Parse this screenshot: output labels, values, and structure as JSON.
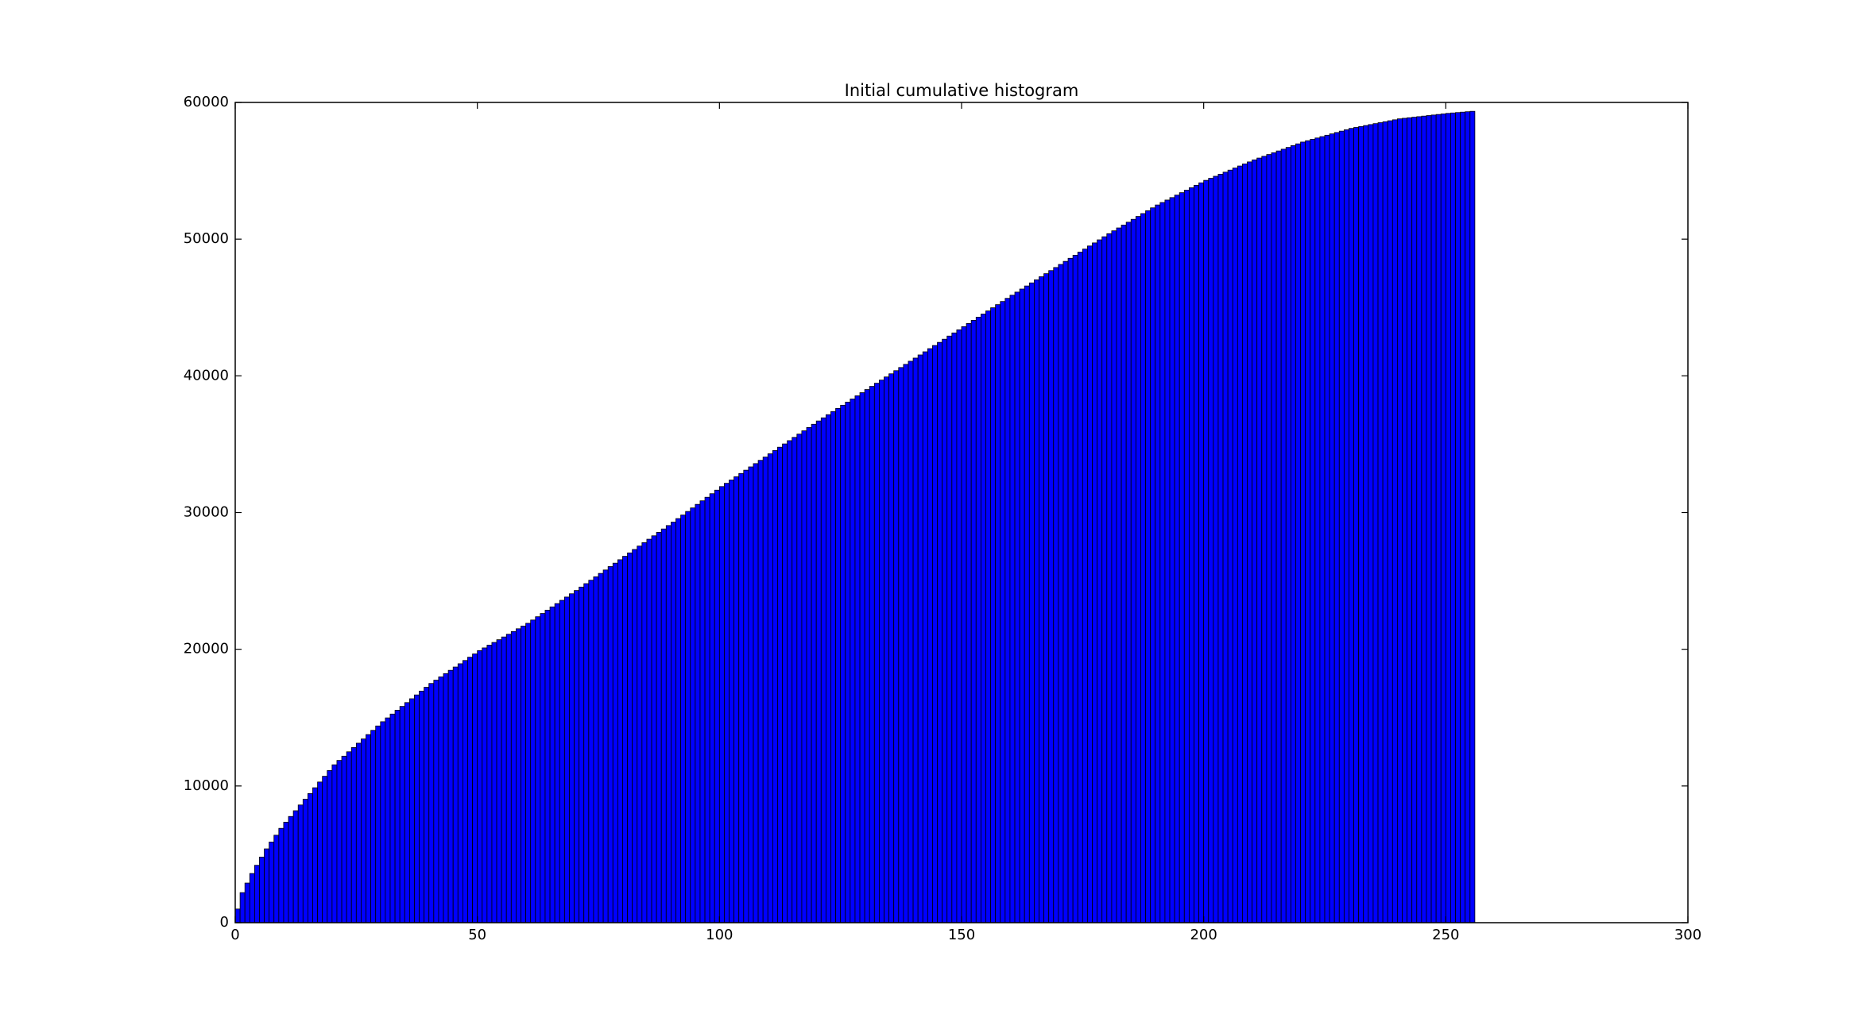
{
  "chart_data": {
    "type": "bar",
    "title": "Initial cumulative histogram",
    "x": [
      0,
      1,
      2,
      3,
      4,
      5,
      6,
      7,
      8,
      9,
      10,
      11,
      12,
      13,
      14,
      15,
      16,
      17,
      18,
      19,
      20,
      21,
      22,
      23,
      24,
      25,
      26,
      27,
      28,
      29,
      30,
      31,
      32,
      33,
      34,
      35,
      36,
      37,
      38,
      39,
      40,
      41,
      42,
      43,
      44,
      45,
      46,
      47,
      48,
      49,
      50,
      51,
      52,
      53,
      54,
      55,
      56,
      57,
      58,
      59,
      60,
      61,
      62,
      63,
      64,
      65,
      66,
      67,
      68,
      69,
      70,
      71,
      72,
      73,
      74,
      75,
      76,
      77,
      78,
      79,
      80,
      81,
      82,
      83,
      84,
      85,
      86,
      87,
      88,
      89,
      90,
      91,
      92,
      93,
      94,
      95,
      96,
      97,
      98,
      99,
      100,
      101,
      102,
      103,
      104,
      105,
      106,
      107,
      108,
      109,
      110,
      111,
      112,
      113,
      114,
      115,
      116,
      117,
      118,
      119,
      120,
      121,
      122,
      123,
      124,
      125,
      126,
      127,
      128,
      129,
      130,
      131,
      132,
      133,
      134,
      135,
      136,
      137,
      138,
      139,
      140,
      141,
      142,
      143,
      144,
      145,
      146,
      147,
      148,
      149,
      150,
      151,
      152,
      153,
      154,
      155,
      156,
      157,
      158,
      159,
      160,
      161,
      162,
      163,
      164,
      165,
      166,
      167,
      168,
      169,
      170,
      171,
      172,
      173,
      174,
      175,
      176,
      177,
      178,
      179,
      180,
      181,
      182,
      183,
      184,
      185,
      186,
      187,
      188,
      189,
      190,
      191,
      192,
      193,
      194,
      195,
      196,
      197,
      198,
      199,
      200,
      201,
      202,
      203,
      204,
      205,
      206,
      207,
      208,
      209,
      210,
      211,
      212,
      213,
      214,
      215,
      216,
      217,
      218,
      219,
      220,
      221,
      222,
      223,
      224,
      225,
      226,
      227,
      228,
      229,
      230,
      231,
      232,
      233,
      234,
      235,
      236,
      237,
      238,
      239,
      240,
      241,
      242,
      243,
      244,
      245,
      246,
      247,
      248,
      249,
      250,
      251,
      252,
      253,
      254,
      255
    ],
    "values": [
      1000,
      2200,
      2900,
      3600,
      4200,
      4800,
      5400,
      5900,
      6400,
      6900,
      7350,
      7770,
      8190,
      8610,
      9030,
      9450,
      9870,
      10290,
      10710,
      11130,
      11550,
      11870,
      12180,
      12500,
      12810,
      13130,
      13440,
      13760,
      14070,
      14390,
      14700,
      14980,
      15260,
      15540,
      15820,
      16100,
      16380,
      16660,
      16940,
      17220,
      17500,
      17740,
      17980,
      18220,
      18460,
      18700,
      18940,
      19180,
      19420,
      19660,
      19900,
      20100,
      20300,
      20500,
      20700,
      20900,
      21100,
      21300,
      21500,
      21700,
      21900,
      22140,
      22380,
      22620,
      22860,
      23100,
      23340,
      23580,
      23820,
      24060,
      24300,
      24550,
      24800,
      25050,
      25300,
      25550,
      25800,
      26050,
      26300,
      26550,
      26800,
      27050,
      27300,
      27550,
      27800,
      28050,
      28300,
      28550,
      28800,
      29050,
      29300,
      29560,
      29820,
      30080,
      30340,
      30600,
      30860,
      31120,
      31380,
      31640,
      31900,
      32140,
      32380,
      32620,
      32860,
      33100,
      33340,
      33580,
      33820,
      34060,
      34300,
      34540,
      34780,
      35020,
      35260,
      35500,
      35740,
      35980,
      36220,
      36460,
      36700,
      36930,
      37160,
      37390,
      37620,
      37850,
      38080,
      38310,
      38540,
      38770,
      39000,
      39230,
      39460,
      39690,
      39920,
      40150,
      40380,
      40610,
      40840,
      41070,
      41300,
      41530,
      41760,
      41990,
      42220,
      42450,
      42680,
      42910,
      43140,
      43370,
      43600,
      43830,
      44060,
      44290,
      44520,
      44750,
      44980,
      45210,
      45440,
      45670,
      45900,
      46125,
      46350,
      46575,
      46800,
      47025,
      47250,
      47475,
      47700,
      47925,
      48150,
      48375,
      48600,
      48825,
      49050,
      49275,
      49500,
      49725,
      49950,
      50175,
      50400,
      50610,
      50820,
      51030,
      51240,
      51450,
      51660,
      51870,
      52080,
      52290,
      52500,
      52680,
      52860,
      53040,
      53220,
      53400,
      53580,
      53760,
      53940,
      54120,
      54300,
      54450,
      54600,
      54750,
      54900,
      55050,
      55200,
      55350,
      55500,
      55650,
      55800,
      55930,
      56060,
      56190,
      56320,
      56450,
      56580,
      56710,
      56840,
      56970,
      57100,
      57200,
      57300,
      57400,
      57500,
      57600,
      57700,
      57800,
      57900,
      58000,
      58100,
      58170,
      58240,
      58310,
      58380,
      58450,
      58520,
      58590,
      58660,
      58730,
      58800,
      58840,
      58880,
      58920,
      58960,
      59000,
      59040,
      59080,
      59120,
      59160,
      59200,
      59230,
      59260,
      59290,
      59320,
      59350
    ],
    "color": "#0000ff",
    "edgecolor": "#000000",
    "xlim": [
      0,
      300
    ],
    "xticks": [
      0,
      50,
      100,
      150,
      200,
      250,
      300
    ],
    "ylim": [
      0,
      60000
    ],
    "yticks": [
      0,
      10000,
      20000,
      30000,
      40000,
      50000,
      60000
    ],
    "grid": false
  }
}
